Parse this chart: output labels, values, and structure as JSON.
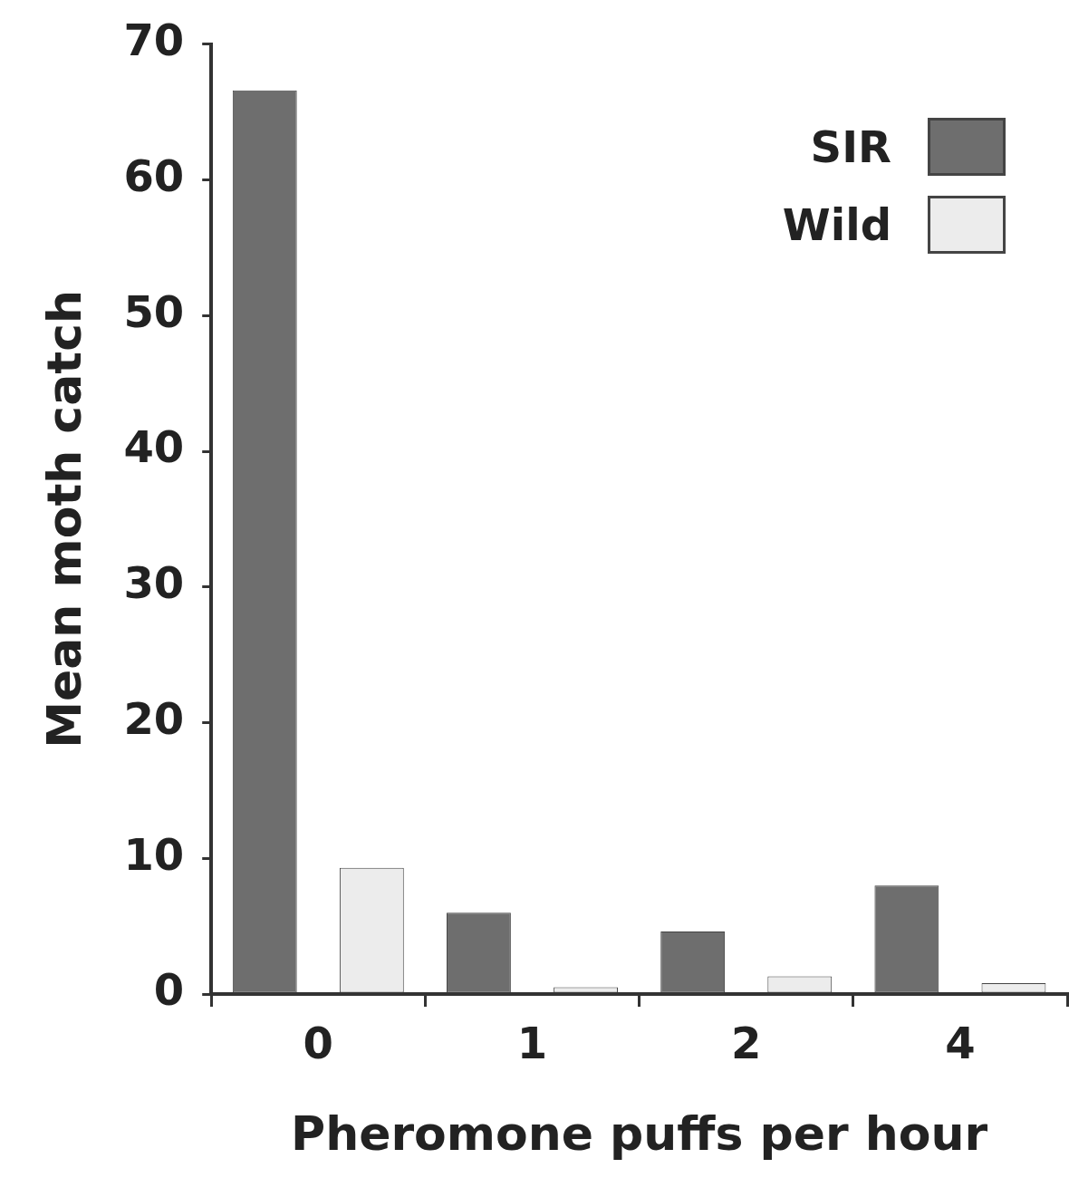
{
  "chart_data": {
    "type": "bar",
    "xlabel": "Pheromone puffs per hour",
    "ylabel": "Mean moth catch",
    "categories": [
      "0",
      "1",
      "2",
      "4"
    ],
    "series": [
      {
        "name": "SIR",
        "color": "#6e6e6e",
        "values": [
          66.6,
          6.0,
          4.6,
          8.0
        ]
      },
      {
        "name": "Wild",
        "color": "#ececec",
        "values": [
          9.3,
          0.5,
          1.3,
          0.8
        ]
      }
    ],
    "ylim": [
      0,
      70
    ],
    "yticks": [
      0,
      10,
      20,
      30,
      40,
      50,
      60,
      70
    ],
    "grid": false,
    "legend": "top right"
  }
}
